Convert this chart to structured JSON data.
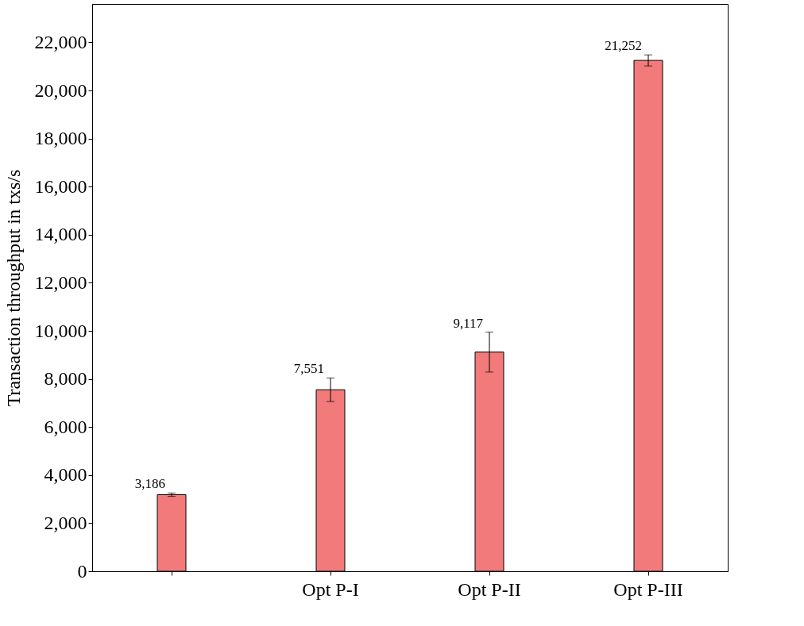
{
  "chart_data": {
    "type": "bar",
    "ylabel": "Transaction throughput in txs/s",
    "categories": [
      null,
      "Opt P-I",
      "Opt P-II",
      "Opt P-III"
    ],
    "values": [
      3186,
      7551,
      9117,
      21252
    ],
    "value_labels": [
      "3,186",
      "7,551",
      "9,117",
      "21,252"
    ],
    "errors": [
      70,
      490,
      830,
      230
    ],
    "color": "#f27a7a",
    "ylim": [
      0,
      23600
    ],
    "yticks": [
      0,
      {
        "value": 2000,
        "label": "2,000"
      },
      {
        "value": 4000,
        "label": "4,000"
      },
      {
        "value": 6000,
        "label": "6,000"
      },
      {
        "value": 8000,
        "label": "8,000"
      },
      {
        "value": 10000,
        "label": "10,000"
      },
      {
        "value": 12000,
        "label": "12,000"
      },
      {
        "value": 14000,
        "label": "14,000"
      },
      {
        "value": 16000,
        "label": "16,000"
      },
      {
        "value": 18000,
        "label": "18,000"
      },
      {
        "value": 20000,
        "label": "20,000"
      },
      {
        "value": 22000,
        "label": "22,000"
      }
    ],
    "grid": false
  }
}
